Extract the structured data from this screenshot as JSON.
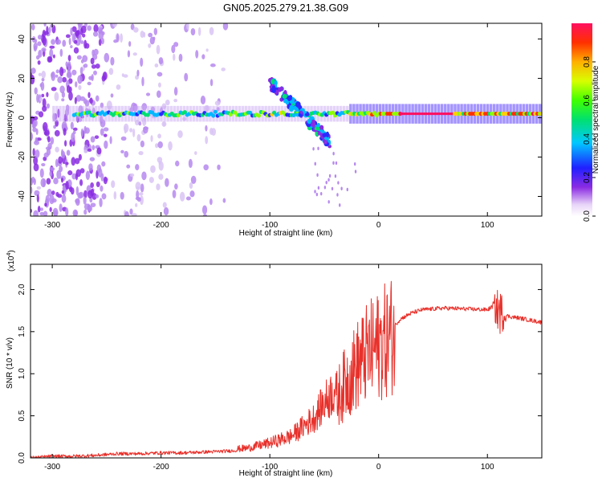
{
  "title": "GN05.2025.279.21.38.G09",
  "chart_data": [
    {
      "type": "heatmap",
      "title": "GN05.2025.279.21.38.G09",
      "xlabel": "Height of straight line (km)",
      "ylabel": "Frequency (Hz)",
      "xlim": [
        -320,
        150
      ],
      "ylim": [
        -50,
        48
      ],
      "xticks": [
        -300,
        -200,
        -100,
        0,
        100
      ],
      "yticks": [
        -40,
        -20,
        0,
        20,
        40
      ],
      "colorbar": {
        "label": "Normalized spectral amplitude",
        "range": [
          0.0,
          1.0
        ],
        "ticks": [
          "0.0",
          "0.2",
          "0.4",
          "0.6",
          "0.8"
        ],
        "tick_values": [
          0.0,
          0.2,
          0.4,
          0.6,
          0.8
        ]
      },
      "features": {
        "noise_region_km": [
          -320,
          -140
        ],
        "main_tone_hz": 2,
        "strong_tone_region_km": [
          -30,
          150
        ],
        "doppler_branch": {
          "from_km": -100,
          "to_km": -45,
          "freq_from_hz": 18,
          "freq_to_hz": -12
        }
      }
    },
    {
      "type": "line",
      "xlabel": "Height of straight line (km)",
      "ylabel": "SNR (10 * v/v)",
      "ylabel_exponent": "(x10",
      "ylabel_exponent_power": "4",
      "ylabel_exponent_close": ")",
      "xlim": [
        -320,
        150
      ],
      "ylim": [
        0,
        2.3
      ],
      "xticks": [
        -300,
        -200,
        -100,
        0,
        100
      ],
      "yticks": [
        "0.0",
        "0.5",
        "1.0",
        "1.5",
        "2.0"
      ],
      "ytick_values": [
        0.0,
        0.5,
        1.0,
        1.5,
        2.0
      ],
      "color": "#e8302a",
      "series": [
        {
          "name": "SNR",
          "x": [
            -320,
            -300,
            -280,
            -260,
            -240,
            -220,
            -200,
            -180,
            -160,
            -140,
            -120,
            -100,
            -80,
            -60,
            -40,
            -30,
            -20,
            -10,
            0,
            10,
            20,
            30,
            40,
            60,
            80,
            100,
            105,
            110,
            115,
            120,
            130,
            150
          ],
          "y": [
            0.0,
            0.02,
            0.02,
            0.03,
            0.05,
            0.05,
            0.06,
            0.06,
            0.07,
            0.08,
            0.1,
            0.15,
            0.22,
            0.4,
            0.7,
            0.95,
            1.15,
            1.3,
            1.4,
            1.5,
            1.65,
            1.72,
            1.76,
            1.78,
            1.77,
            1.76,
            1.8,
            1.75,
            1.7,
            1.68,
            1.66,
            1.61
          ]
        }
      ]
    }
  ]
}
